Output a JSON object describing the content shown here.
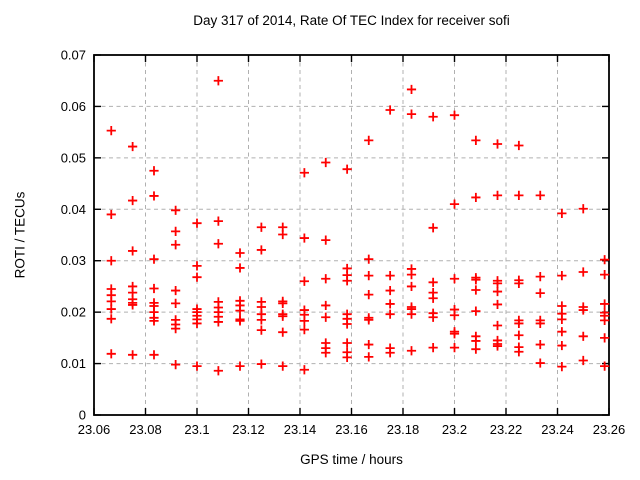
{
  "chart_data": {
    "type": "scatter",
    "title": "Day 317 of 2014, Rate Of TEC Index for receiver sofi",
    "xlabel": "GPS time / hours",
    "ylabel": "ROTI / TECUs",
    "xlim": [
      23.06,
      23.26
    ],
    "ylim": [
      0,
      0.07
    ],
    "grid": true,
    "legend_position": "none",
    "marker": "plus",
    "marker_color": "#ff0000",
    "grid_color": "#b0b0b0",
    "frame_color": "#000000",
    "xticks": [
      {
        "value": 23.06,
        "label": "23.06"
      },
      {
        "value": 23.08,
        "label": "23.08"
      },
      {
        "value": 23.1,
        "label": "23.1"
      },
      {
        "value": 23.12,
        "label": "23.12"
      },
      {
        "value": 23.14,
        "label": "23.14"
      },
      {
        "value": 23.16,
        "label": "23.16"
      },
      {
        "value": 23.18,
        "label": "23.18"
      },
      {
        "value": 23.2,
        "label": "23.2"
      },
      {
        "value": 23.22,
        "label": "23.22"
      },
      {
        "value": 23.24,
        "label": "23.24"
      },
      {
        "value": 23.26,
        "label": "23.26"
      }
    ],
    "yticks": [
      {
        "value": 0.0,
        "label": "0"
      },
      {
        "value": 0.01,
        "label": "0.01"
      },
      {
        "value": 0.02,
        "label": "0.02"
      },
      {
        "value": 0.03,
        "label": "0.03"
      },
      {
        "value": 0.04,
        "label": "0.04"
      },
      {
        "value": 0.05,
        "label": "0.05"
      },
      {
        "value": 0.06,
        "label": "0.06"
      },
      {
        "value": 0.07,
        "label": "0.07"
      }
    ],
    "series": [
      {
        "name": "ROTI",
        "points": [
          [
            23.0667,
            0.0553
          ],
          [
            23.0667,
            0.039
          ],
          [
            23.0667,
            0.03
          ],
          [
            23.0667,
            0.0245
          ],
          [
            23.0667,
            0.0233
          ],
          [
            23.0667,
            0.0221
          ],
          [
            23.0667,
            0.0206
          ],
          [
            23.0667,
            0.0187
          ],
          [
            23.0667,
            0.0119
          ],
          [
            23.075,
            0.0522
          ],
          [
            23.075,
            0.0417
          ],
          [
            23.075,
            0.0319
          ],
          [
            23.075,
            0.025
          ],
          [
            23.075,
            0.0238
          ],
          [
            23.075,
            0.0225
          ],
          [
            23.075,
            0.0218
          ],
          [
            23.075,
            0.0214
          ],
          [
            23.075,
            0.0117
          ],
          [
            23.0833,
            0.0475
          ],
          [
            23.0833,
            0.0426
          ],
          [
            23.0833,
            0.0303
          ],
          [
            23.0833,
            0.0246
          ],
          [
            23.0833,
            0.0218
          ],
          [
            23.0833,
            0.0212
          ],
          [
            23.0833,
            0.02
          ],
          [
            23.0833,
            0.0189
          ],
          [
            23.0833,
            0.0183
          ],
          [
            23.0833,
            0.0117
          ],
          [
            23.0917,
            0.0398
          ],
          [
            23.0917,
            0.0357
          ],
          [
            23.0917,
            0.0331
          ],
          [
            23.0917,
            0.0242
          ],
          [
            23.0917,
            0.0217
          ],
          [
            23.0917,
            0.0185
          ],
          [
            23.0917,
            0.0176
          ],
          [
            23.0917,
            0.0168
          ],
          [
            23.0917,
            0.0098
          ],
          [
            23.1,
            0.0373
          ],
          [
            23.1,
            0.029
          ],
          [
            23.1,
            0.0268
          ],
          [
            23.1,
            0.0206
          ],
          [
            23.1,
            0.02
          ],
          [
            23.1,
            0.0193
          ],
          [
            23.1,
            0.0186
          ],
          [
            23.1,
            0.0178
          ],
          [
            23.1,
            0.0095
          ],
          [
            23.1083,
            0.065
          ],
          [
            23.1083,
            0.0377
          ],
          [
            23.1083,
            0.0333
          ],
          [
            23.1083,
            0.022
          ],
          [
            23.1083,
            0.0209
          ],
          [
            23.1083,
            0.02
          ],
          [
            23.1083,
            0.0191
          ],
          [
            23.1083,
            0.0181
          ],
          [
            23.1083,
            0.0086
          ],
          [
            23.1167,
            0.0315
          ],
          [
            23.1167,
            0.0286
          ],
          [
            23.1167,
            0.0222
          ],
          [
            23.1167,
            0.0213
          ],
          [
            23.1167,
            0.0203
          ],
          [
            23.1167,
            0.0186
          ],
          [
            23.1167,
            0.0183
          ],
          [
            23.1167,
            0.0095
          ],
          [
            23.125,
            0.0365
          ],
          [
            23.125,
            0.0321
          ],
          [
            23.125,
            0.022
          ],
          [
            23.125,
            0.021
          ],
          [
            23.125,
            0.0196
          ],
          [
            23.125,
            0.0185
          ],
          [
            23.125,
            0.0165
          ],
          [
            23.125,
            0.0099
          ],
          [
            23.1333,
            0.0365
          ],
          [
            23.1333,
            0.0351
          ],
          [
            23.1333,
            0.0221
          ],
          [
            23.1333,
            0.0217
          ],
          [
            23.1333,
            0.0196
          ],
          [
            23.1333,
            0.0192
          ],
          [
            23.1333,
            0.0161
          ],
          [
            23.1333,
            0.0095
          ],
          [
            23.1417,
            0.0471
          ],
          [
            23.1417,
            0.0344
          ],
          [
            23.1417,
            0.026
          ],
          [
            23.1417,
            0.0204
          ],
          [
            23.1417,
            0.0195
          ],
          [
            23.1417,
            0.0183
          ],
          [
            23.1417,
            0.0166
          ],
          [
            23.1417,
            0.0088
          ],
          [
            23.15,
            0.0491
          ],
          [
            23.15,
            0.034
          ],
          [
            23.15,
            0.0265
          ],
          [
            23.15,
            0.0213
          ],
          [
            23.15,
            0.019
          ],
          [
            23.15,
            0.014
          ],
          [
            23.15,
            0.013
          ],
          [
            23.15,
            0.0121
          ],
          [
            23.1583,
            0.0478
          ],
          [
            23.1583,
            0.0285
          ],
          [
            23.1583,
            0.0272
          ],
          [
            23.1583,
            0.0261
          ],
          [
            23.1583,
            0.0196
          ],
          [
            23.1583,
            0.0187
          ],
          [
            23.1583,
            0.0177
          ],
          [
            23.1583,
            0.014
          ],
          [
            23.1583,
            0.0122
          ],
          [
            23.1583,
            0.0112
          ],
          [
            23.1667,
            0.0534
          ],
          [
            23.1667,
            0.0303
          ],
          [
            23.1667,
            0.0271
          ],
          [
            23.1667,
            0.0234
          ],
          [
            23.1667,
            0.0189
          ],
          [
            23.1667,
            0.0185
          ],
          [
            23.1667,
            0.0137
          ],
          [
            23.1667,
            0.0113
          ],
          [
            23.175,
            0.0593
          ],
          [
            23.175,
            0.0271
          ],
          [
            23.175,
            0.0242
          ],
          [
            23.175,
            0.0216
          ],
          [
            23.175,
            0.0196
          ],
          [
            23.175,
            0.013
          ],
          [
            23.175,
            0.0121
          ],
          [
            23.1833,
            0.0633
          ],
          [
            23.1833,
            0.0585
          ],
          [
            23.1833,
            0.0284
          ],
          [
            23.1833,
            0.0273
          ],
          [
            23.1833,
            0.025
          ],
          [
            23.1833,
            0.021
          ],
          [
            23.1833,
            0.0206
          ],
          [
            23.1833,
            0.0196
          ],
          [
            23.1833,
            0.0125
          ],
          [
            23.1917,
            0.058
          ],
          [
            23.1917,
            0.0364
          ],
          [
            23.1917,
            0.0258
          ],
          [
            23.1917,
            0.0238
          ],
          [
            23.1917,
            0.0227
          ],
          [
            23.1917,
            0.0198
          ],
          [
            23.1917,
            0.019
          ],
          [
            23.1917,
            0.0131
          ],
          [
            23.2,
            0.0583
          ],
          [
            23.2,
            0.041
          ],
          [
            23.2,
            0.0265
          ],
          [
            23.2,
            0.0205
          ],
          [
            23.2,
            0.0194
          ],
          [
            23.2,
            0.0162
          ],
          [
            23.2,
            0.0158
          ],
          [
            23.2,
            0.0131
          ],
          [
            23.2083,
            0.0534
          ],
          [
            23.2083,
            0.0423
          ],
          [
            23.2083,
            0.0267
          ],
          [
            23.2083,
            0.0263
          ],
          [
            23.2083,
            0.0243
          ],
          [
            23.2083,
            0.0202
          ],
          [
            23.2083,
            0.0153
          ],
          [
            23.2083,
            0.0144
          ],
          [
            23.2083,
            0.0128
          ],
          [
            23.2167,
            0.0527
          ],
          [
            23.2167,
            0.0427
          ],
          [
            23.2167,
            0.0261
          ],
          [
            23.2167,
            0.0256
          ],
          [
            23.2167,
            0.024
          ],
          [
            23.2167,
            0.0215
          ],
          [
            23.2167,
            0.0174
          ],
          [
            23.2167,
            0.0145
          ],
          [
            23.2167,
            0.0138
          ],
          [
            23.2167,
            0.0134
          ],
          [
            23.225,
            0.0524
          ],
          [
            23.225,
            0.0427
          ],
          [
            23.225,
            0.0262
          ],
          [
            23.225,
            0.0256
          ],
          [
            23.225,
            0.0184
          ],
          [
            23.225,
            0.0178
          ],
          [
            23.225,
            0.0155
          ],
          [
            23.225,
            0.0132
          ],
          [
            23.225,
            0.0123
          ],
          [
            23.2333,
            0.0427
          ],
          [
            23.2333,
            0.0269
          ],
          [
            23.2333,
            0.0237
          ],
          [
            23.2333,
            0.0184
          ],
          [
            23.2333,
            0.0178
          ],
          [
            23.2333,
            0.0137
          ],
          [
            23.2333,
            0.0101
          ],
          [
            23.2417,
            0.0392
          ],
          [
            23.2417,
            0.0271
          ],
          [
            23.2417,
            0.0212
          ],
          [
            23.2417,
            0.0197
          ],
          [
            23.2417,
            0.0186
          ],
          [
            23.2417,
            0.0162
          ],
          [
            23.2417,
            0.0135
          ],
          [
            23.2417,
            0.0094
          ],
          [
            23.25,
            0.0401
          ],
          [
            23.25,
            0.0278
          ],
          [
            23.25,
            0.021
          ],
          [
            23.25,
            0.0204
          ],
          [
            23.25,
            0.0153
          ],
          [
            23.25,
            0.0106
          ],
          [
            23.2583,
            0.0302
          ],
          [
            23.2583,
            0.0273
          ],
          [
            23.2583,
            0.0216
          ],
          [
            23.2583,
            0.0199
          ],
          [
            23.2583,
            0.0193
          ],
          [
            23.2583,
            0.0184
          ],
          [
            23.2583,
            0.015
          ],
          [
            23.2583,
            0.0095
          ]
        ]
      }
    ]
  }
}
